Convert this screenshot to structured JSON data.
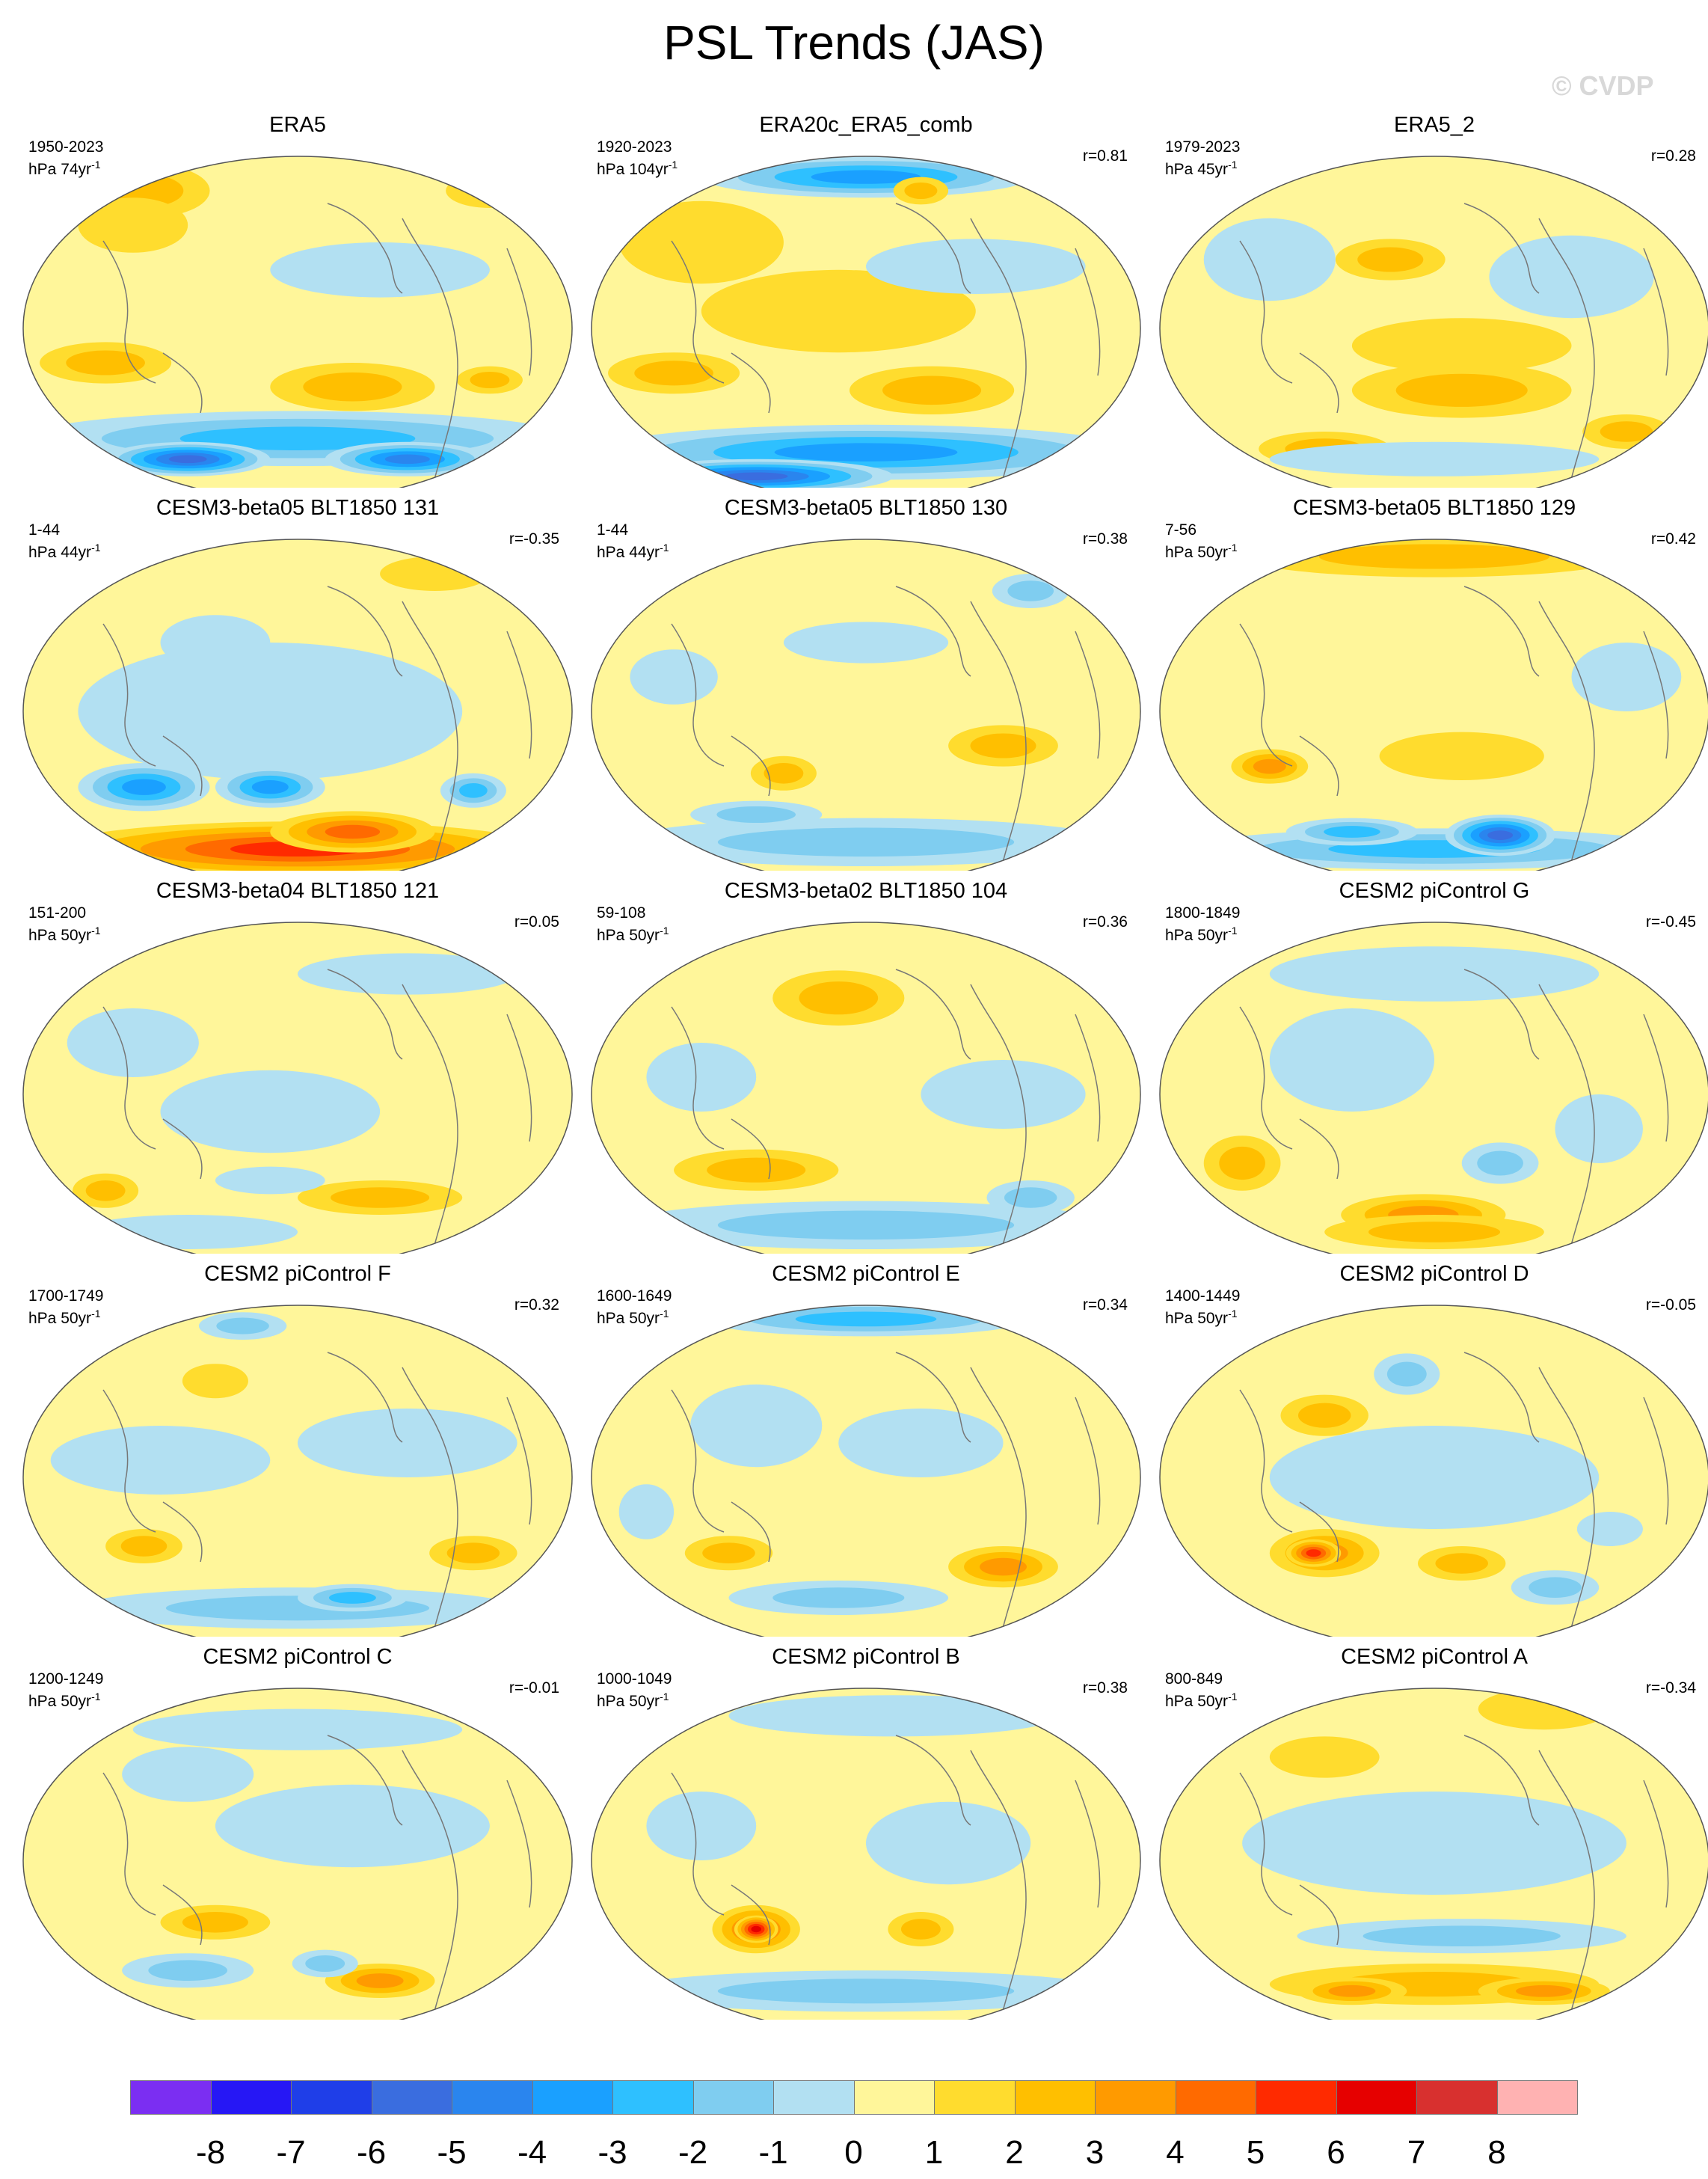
{
  "title": "PSL Trends (JAS)",
  "watermark": "© CVDP",
  "panels": [
    {
      "title": "ERA5",
      "period": "1950-2023",
      "units_base": "hPa 74yr",
      "units_exp": "-1",
      "r": "",
      "blobs": [
        [
          0.22,
          0.1,
          0.12,
          0.08,
          2
        ],
        [
          0.2,
          0.2,
          0.1,
          0.08,
          1
        ],
        [
          0.15,
          0.6,
          0.12,
          0.06,
          2
        ],
        [
          0.6,
          0.67,
          0.15,
          0.07,
          2
        ],
        [
          0.85,
          0.65,
          0.06,
          0.04,
          2
        ],
        [
          0.5,
          0.82,
          0.5,
          0.08,
          -3
        ],
        [
          0.3,
          0.88,
          0.15,
          0.05,
          -6
        ],
        [
          0.7,
          0.88,
          0.15,
          0.05,
          -5
        ],
        [
          0.65,
          0.33,
          0.2,
          0.08,
          -1
        ],
        [
          0.85,
          0.1,
          0.08,
          0.05,
          1
        ]
      ]
    },
    {
      "title": "ERA20c_ERA5_comb",
      "period": "1920-2023",
      "units_base": "hPa 104yr",
      "units_exp": "-1",
      "r": "r=0.81",
      "blobs": [
        [
          0.5,
          0.06,
          0.3,
          0.06,
          -4
        ],
        [
          0.2,
          0.25,
          0.15,
          0.12,
          1
        ],
        [
          0.45,
          0.45,
          0.25,
          0.12,
          0
        ],
        [
          0.62,
          0.68,
          0.15,
          0.07,
          2
        ],
        [
          0.15,
          0.63,
          0.12,
          0.06,
          2
        ],
        [
          0.5,
          0.86,
          0.5,
          0.08,
          -4
        ],
        [
          0.3,
          0.93,
          0.25,
          0.05,
          -6
        ],
        [
          0.7,
          0.32,
          0.2,
          0.08,
          -1
        ],
        [
          0.6,
          0.1,
          0.05,
          0.04,
          2
        ]
      ]
    },
    {
      "title": "ERA5_2",
      "period": "1979-2023",
      "units_base": "hPa 45yr",
      "units_exp": "-1",
      "r": "r=0.28",
      "blobs": [
        [
          0.42,
          0.3,
          0.1,
          0.06,
          2
        ],
        [
          0.55,
          0.55,
          0.2,
          0.08,
          1
        ],
        [
          0.55,
          0.68,
          0.2,
          0.08,
          2
        ],
        [
          0.3,
          0.85,
          0.12,
          0.05,
          2
        ],
        [
          0.85,
          0.8,
          0.08,
          0.05,
          2
        ],
        [
          0.2,
          0.3,
          0.12,
          0.12,
          -1
        ],
        [
          0.75,
          0.35,
          0.15,
          0.12,
          -1
        ],
        [
          0.5,
          0.88,
          0.3,
          0.05,
          -1
        ]
      ]
    },
    {
      "title": "CESM3-beta05 BLT1850 131",
      "period": "1-44",
      "units_base": "hPa 44yr",
      "units_exp": "-1",
      "r": "r=-0.35",
      "blobs": [
        [
          0.45,
          0.5,
          0.35,
          0.2,
          -1
        ],
        [
          0.22,
          0.72,
          0.12,
          0.07,
          -4
        ],
        [
          0.45,
          0.72,
          0.1,
          0.06,
          -4
        ],
        [
          0.82,
          0.73,
          0.06,
          0.05,
          -3
        ],
        [
          0.5,
          0.9,
          0.45,
          0.08,
          5
        ],
        [
          0.6,
          0.85,
          0.15,
          0.06,
          4
        ],
        [
          0.75,
          0.1,
          0.1,
          0.05,
          1
        ],
        [
          0.35,
          0.3,
          0.1,
          0.08,
          -1
        ]
      ]
    },
    {
      "title": "CESM3-beta05 BLT1850 130",
      "period": "1-44",
      "units_base": "hPa 44yr",
      "units_exp": "-1",
      "r": "r=0.38",
      "blobs": [
        [
          0.8,
          0.15,
          0.07,
          0.05,
          -2
        ],
        [
          0.5,
          0.3,
          0.15,
          0.06,
          -1
        ],
        [
          0.35,
          0.68,
          0.06,
          0.05,
          2
        ],
        [
          0.75,
          0.6,
          0.1,
          0.06,
          2
        ],
        [
          0.5,
          0.88,
          0.45,
          0.07,
          -2
        ],
        [
          0.3,
          0.8,
          0.12,
          0.04,
          -2
        ],
        [
          0.15,
          0.4,
          0.08,
          0.08,
          -1
        ]
      ]
    },
    {
      "title": "CESM3-beta05 BLT1850 129",
      "period": "7-56",
      "units_base": "hPa 50yr",
      "units_exp": "-1",
      "r": "r=0.42",
      "blobs": [
        [
          0.5,
          0.05,
          0.35,
          0.06,
          2
        ],
        [
          0.2,
          0.66,
          0.07,
          0.05,
          3
        ],
        [
          0.55,
          0.63,
          0.15,
          0.07,
          1
        ],
        [
          0.5,
          0.9,
          0.45,
          0.06,
          -3
        ],
        [
          0.62,
          0.86,
          0.1,
          0.06,
          -6
        ],
        [
          0.35,
          0.85,
          0.12,
          0.04,
          -3
        ],
        [
          0.85,
          0.4,
          0.1,
          0.1,
          -1
        ]
      ]
    },
    {
      "title": "CESM3-beta04 BLT1850 121",
      "period": "151-200",
      "units_base": "hPa 50yr",
      "units_exp": "-1",
      "r": "r=0.05",
      "blobs": [
        [
          0.45,
          0.55,
          0.2,
          0.12,
          -1
        ],
        [
          0.2,
          0.35,
          0.12,
          0.1,
          -1
        ],
        [
          0.7,
          0.15,
          0.2,
          0.06,
          -1
        ],
        [
          0.15,
          0.78,
          0.06,
          0.05,
          2
        ],
        [
          0.65,
          0.8,
          0.15,
          0.05,
          2
        ],
        [
          0.45,
          0.75,
          0.1,
          0.04,
          -1
        ],
        [
          0.3,
          0.9,
          0.2,
          0.05,
          -1
        ]
      ]
    },
    {
      "title": "CESM3-beta02 BLT1850 104",
      "period": "59-108",
      "units_base": "hPa 50yr",
      "units_exp": "-1",
      "r": "r=0.36",
      "blobs": [
        [
          0.45,
          0.22,
          0.12,
          0.08,
          2
        ],
        [
          0.3,
          0.72,
          0.15,
          0.06,
          2
        ],
        [
          0.5,
          0.88,
          0.45,
          0.07,
          -2
        ],
        [
          0.8,
          0.8,
          0.08,
          0.05,
          -2
        ],
        [
          0.2,
          0.45,
          0.1,
          0.1,
          -1
        ],
        [
          0.75,
          0.5,
          0.15,
          0.1,
          -1
        ]
      ]
    },
    {
      "title": "CESM2 piControl G",
      "period": "1800-1849",
      "units_base": "hPa 50yr",
      "units_exp": "-1",
      "r": "r=-0.45",
      "blobs": [
        [
          0.35,
          0.4,
          0.15,
          0.15,
          -1
        ],
        [
          0.15,
          0.7,
          0.07,
          0.08,
          2
        ],
        [
          0.48,
          0.85,
          0.15,
          0.06,
          3
        ],
        [
          0.5,
          0.9,
          0.2,
          0.05,
          2
        ],
        [
          0.62,
          0.7,
          0.07,
          0.06,
          -2
        ],
        [
          0.8,
          0.6,
          0.08,
          0.1,
          -1
        ],
        [
          0.5,
          0.15,
          0.3,
          0.08,
          -1
        ]
      ]
    },
    {
      "title": "CESM2 piControl F",
      "period": "1700-1749",
      "units_base": "hPa 50yr",
      "units_exp": "-1",
      "r": "r=0.32",
      "blobs": [
        [
          0.4,
          0.06,
          0.08,
          0.04,
          -2
        ],
        [
          0.35,
          0.22,
          0.06,
          0.05,
          1
        ],
        [
          0.25,
          0.45,
          0.2,
          0.1,
          -1
        ],
        [
          0.7,
          0.4,
          0.2,
          0.1,
          -1
        ],
        [
          0.22,
          0.7,
          0.07,
          0.05,
          2
        ],
        [
          0.82,
          0.72,
          0.08,
          0.05,
          2
        ],
        [
          0.5,
          0.88,
          0.4,
          0.06,
          -2
        ],
        [
          0.6,
          0.85,
          0.1,
          0.04,
          -3
        ]
      ]
    },
    {
      "title": "CESM2 piControl E",
      "period": "1600-1649",
      "units_base": "hPa 50yr",
      "units_exp": "-1",
      "r": "r=0.34",
      "blobs": [
        [
          0.5,
          0.04,
          0.3,
          0.05,
          -3
        ],
        [
          0.3,
          0.35,
          0.12,
          0.12,
          -1
        ],
        [
          0.6,
          0.4,
          0.15,
          0.1,
          -1
        ],
        [
          0.25,
          0.72,
          0.08,
          0.05,
          2
        ],
        [
          0.75,
          0.76,
          0.1,
          0.06,
          3
        ],
        [
          0.45,
          0.85,
          0.2,
          0.05,
          -2
        ],
        [
          0.1,
          0.6,
          0.05,
          0.08,
          -1
        ]
      ]
    },
    {
      "title": "CESM2 piControl D",
      "period": "1400-1449",
      "units_base": "hPa 50yr",
      "units_exp": "-1",
      "r": "r=-0.05",
      "blobs": [
        [
          0.45,
          0.2,
          0.06,
          0.06,
          -2
        ],
        [
          0.3,
          0.32,
          0.08,
          0.06,
          2
        ],
        [
          0.3,
          0.72,
          0.1,
          0.07,
          3
        ],
        [
          0.28,
          0.72,
          0.05,
          0.04,
          5
        ],
        [
          0.55,
          0.75,
          0.08,
          0.05,
          2
        ],
        [
          0.72,
          0.82,
          0.08,
          0.05,
          -2
        ],
        [
          0.5,
          0.5,
          0.3,
          0.15,
          -1
        ],
        [
          0.82,
          0.65,
          0.06,
          0.05,
          -1
        ]
      ]
    },
    {
      "title": "CESM2 piControl C",
      "period": "1200-1249",
      "units_base": "hPa 50yr",
      "units_exp": "-1",
      "r": "r=-0.01",
      "blobs": [
        [
          0.6,
          0.4,
          0.25,
          0.12,
          -1
        ],
        [
          0.3,
          0.25,
          0.12,
          0.08,
          -1
        ],
        [
          0.35,
          0.68,
          0.1,
          0.05,
          2
        ],
        [
          0.65,
          0.85,
          0.1,
          0.05,
          3
        ],
        [
          0.3,
          0.82,
          0.12,
          0.05,
          -2
        ],
        [
          0.55,
          0.8,
          0.06,
          0.04,
          -2
        ],
        [
          0.5,
          0.12,
          0.3,
          0.06,
          -1
        ]
      ]
    },
    {
      "title": "CESM2 piControl B",
      "period": "1000-1049",
      "units_base": "hPa 50yr",
      "units_exp": "-1",
      "r": "r=0.38",
      "blobs": [
        [
          0.55,
          0.08,
          0.3,
          0.06,
          -1
        ],
        [
          0.3,
          0.7,
          0.08,
          0.07,
          4
        ],
        [
          0.3,
          0.7,
          0.04,
          0.04,
          6
        ],
        [
          0.6,
          0.7,
          0.06,
          0.05,
          2
        ],
        [
          0.5,
          0.88,
          0.45,
          0.06,
          -2
        ],
        [
          0.65,
          0.45,
          0.15,
          0.12,
          -1
        ],
        [
          0.2,
          0.4,
          0.1,
          0.1,
          -1
        ]
      ]
    },
    {
      "title": "CESM2 piControl A",
      "period": "800-849",
      "units_base": "hPa 50yr",
      "units_exp": "-1",
      "r": "r=-0.34",
      "blobs": [
        [
          0.7,
          0.06,
          0.12,
          0.06,
          1
        ],
        [
          0.5,
          0.45,
          0.35,
          0.15,
          -1
        ],
        [
          0.55,
          0.72,
          0.3,
          0.05,
          -2
        ],
        [
          0.5,
          0.86,
          0.3,
          0.06,
          2
        ],
        [
          0.35,
          0.88,
          0.1,
          0.04,
          3
        ],
        [
          0.7,
          0.88,
          0.12,
          0.04,
          3
        ],
        [
          0.3,
          0.2,
          0.1,
          0.06,
          1
        ]
      ]
    }
  ],
  "colorbar": {
    "colors": [
      "#7b2ef2",
      "#2617f5",
      "#1f3ee8",
      "#3a6ddf",
      "#2a85ee",
      "#1aa0ff",
      "#2ec0ff",
      "#7fcdf0",
      "#b2e0f2",
      "#fff69a",
      "#ffdc2e",
      "#ffbf00",
      "#ff9a00",
      "#ff6a00",
      "#ff2a00",
      "#e60000",
      "#d8302f",
      "#ffb2b2"
    ],
    "labels": [
      "-8",
      "-7",
      "-6",
      "-5",
      "-4",
      "-3",
      "-2",
      "-1",
      "0",
      "1",
      "2",
      "3",
      "4",
      "5",
      "6",
      "7",
      "8"
    ]
  }
}
